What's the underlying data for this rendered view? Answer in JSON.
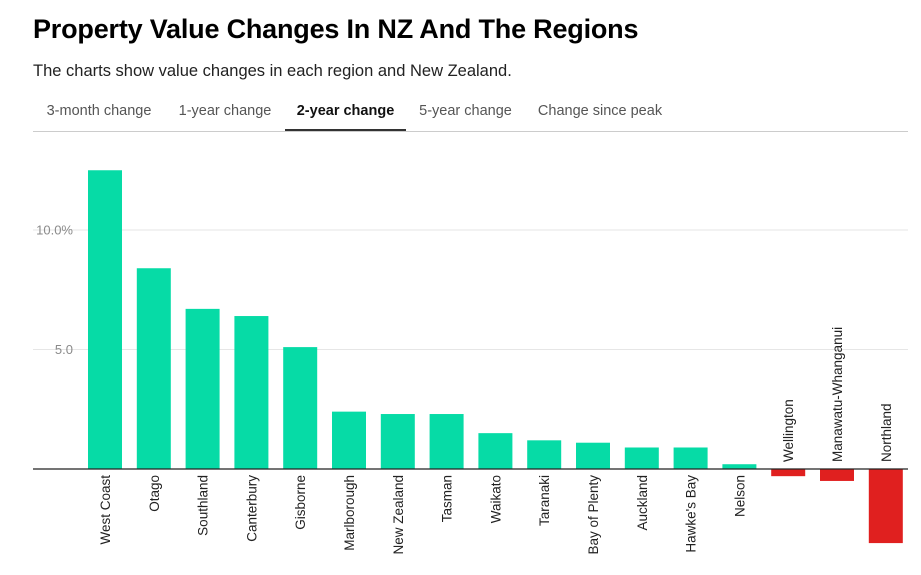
{
  "header": {
    "title": "Property Value Changes In NZ And The Regions",
    "subtitle": "The charts show value changes in each region and New Zealand."
  },
  "tabs": [
    {
      "label": "3-month change",
      "active": false
    },
    {
      "label": "1-year change",
      "active": false
    },
    {
      "label": "2-year change",
      "active": true
    },
    {
      "label": "5-year change",
      "active": false
    },
    {
      "label": "Change since peak",
      "active": false
    }
  ],
  "chart_data": {
    "type": "bar",
    "categories": [
      "West Coast",
      "Otago",
      "Southland",
      "Canterbury",
      "Gisborne",
      "Marlborough",
      "New Zealand",
      "Tasman",
      "Waikato",
      "Taranaki",
      "Bay of Plenty",
      "Auckland",
      "Hawke's Bay",
      "Nelson",
      "Wellington",
      "Manawatu-Whanganui",
      "Northland"
    ],
    "values": [
      12.5,
      8.4,
      6.7,
      6.4,
      5.1,
      2.4,
      2.3,
      2.3,
      1.5,
      1.2,
      1.1,
      0.9,
      0.9,
      0.2,
      -0.3,
      -0.5,
      -3.1
    ],
    "yticks": [
      {
        "value": 5,
        "label": "5.0"
      },
      {
        "value": 10,
        "label": "10.0%"
      }
    ],
    "ylim": [
      -3.1,
      12.5
    ],
    "grid": true,
    "colors": {
      "positive": "#06dba6",
      "negative": "#e0201f",
      "grid": "#e6e6e6",
      "axis": "#222222"
    }
  }
}
